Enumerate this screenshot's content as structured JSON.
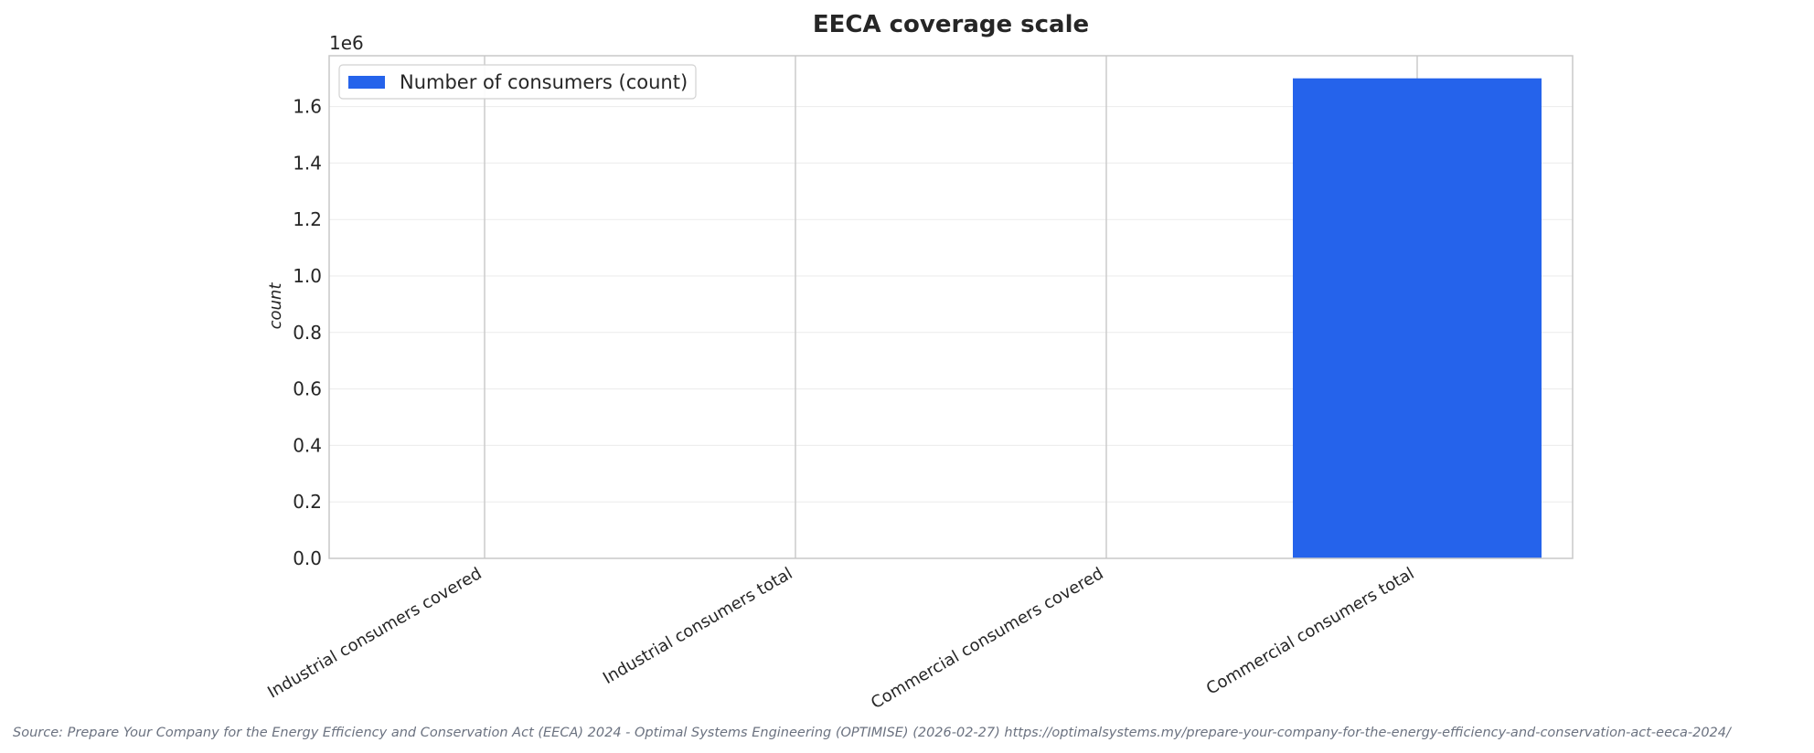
{
  "chart_data": {
    "type": "bar",
    "title": "EECA coverage scale",
    "categories": [
      "Industrial consumers covered",
      "Industrial consumers total",
      "Commercial consumers covered",
      "Commercial consumers total"
    ],
    "series": [
      {
        "name": "Number of consumers (count)",
        "values": [
          0,
          0,
          0,
          1700000
        ],
        "color": "#2563eb"
      }
    ],
    "ylabel": "count",
    "xlabel": "",
    "ylim": [
      0,
      1780000
    ],
    "y_ticks": [
      0,
      200000,
      400000,
      600000,
      800000,
      1000000,
      1200000,
      1400000,
      1600000
    ],
    "y_tick_labels": [
      "0.0",
      "0.2",
      "0.4",
      "0.6",
      "0.8",
      "1.0",
      "1.2",
      "1.4",
      "1.6"
    ],
    "y_offset_label": "1e6",
    "grid": true,
    "legend_position": "top-left"
  },
  "source_note": "Source: Prepare Your Company for the Energy Efficiency and Conservation Act (EECA) 2024 - Optimal Systems Engineering (OPTIMISE) (2026-02-27) https://optimalsystems.my/prepare-your-company-for-the-energy-efficiency-and-conservation-act-eeca-2024/"
}
